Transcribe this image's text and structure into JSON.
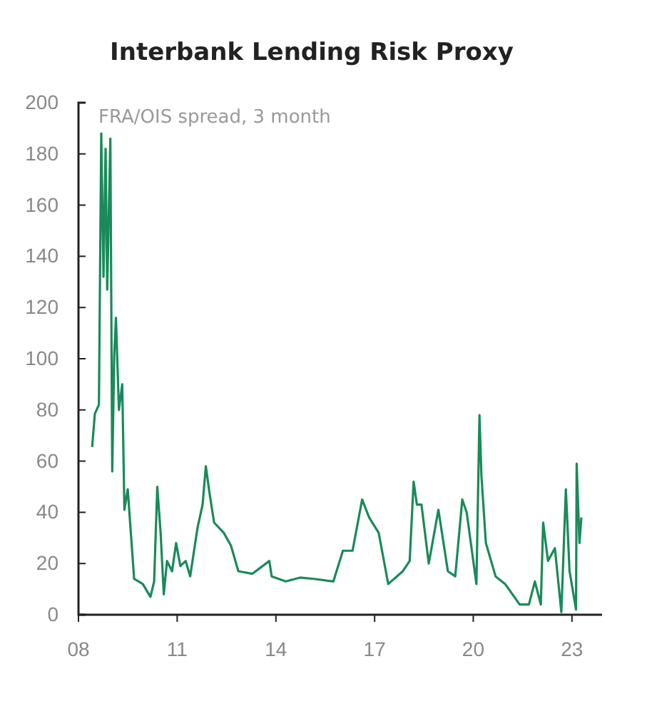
{
  "chart_data": {
    "type": "line",
    "title": "Interbank Lending Risk Proxy",
    "annotations": [
      "FRA/OIS spread, 3 month"
    ],
    "xlim": [
      "2008",
      "2023-12"
    ],
    "xticks": [
      {
        "value": "2008",
        "label": "08"
      },
      {
        "value": "2011",
        "label": "11"
      },
      {
        "value": "2014",
        "label": "14"
      },
      {
        "value": "2017",
        "label": "17"
      },
      {
        "value": "2020",
        "label": "20"
      },
      {
        "value": "2023",
        "label": "23"
      }
    ],
    "ylim": [
      0,
      200
    ],
    "yticks": [
      0,
      20,
      40,
      60,
      80,
      100,
      120,
      140,
      160,
      180,
      200
    ],
    "grid": false,
    "x": [
      "2008-06-01",
      "2008-07-01",
      "2008-08-15",
      "2008-09-10",
      "2008-10-05",
      "2008-10-28",
      "2008-11-15",
      "2008-12-20",
      "2009-01-10",
      "2009-02-01",
      "2009-02-20",
      "2009-03-25",
      "2009-05-01",
      "2009-05-25",
      "2009-07-01",
      "2009-09-10",
      "2009-12-15",
      "2010-03-10",
      "2010-04-20",
      "2010-05-25",
      "2010-07-01",
      "2010-08-05",
      "2010-09-10",
      "2010-11-05",
      "2010-12-20",
      "2011-02-05",
      "2011-04-05",
      "2011-05-25",
      "2011-08-15",
      "2011-10-10",
      "2011-11-15",
      "2011-12-28",
      "2012-02-15",
      "2012-06-01",
      "2012-08-20",
      "2012-11-10",
      "2013-04-15",
      "2013-10-20",
      "2013-11-15",
      "2014-04-20",
      "2014-09-25",
      "2015-03-01",
      "2015-10-01",
      "2016-01-15",
      "2016-05-01",
      "2016-08-15",
      "2016-11-01",
      "2017-02-15",
      "2017-06-01",
      "2017-11-10",
      "2018-01-25",
      "2018-03-10",
      "2018-04-15",
      "2018-06-05",
      "2018-08-25",
      "2018-12-10",
      "2019-03-25",
      "2019-06-15",
      "2019-09-01",
      "2019-10-20",
      "2020-02-05",
      "2020-03-10",
      "2020-04-01",
      "2020-05-20",
      "2020-09-05",
      "2020-12-20",
      "2021-05-30",
      "2021-09-10",
      "2021-11-15",
      "2022-01-20",
      "2022-02-15",
      "2022-04-10",
      "2022-06-25",
      "2022-09-05",
      "2022-10-25",
      "2022-12-05",
      "2023-02-15",
      "2023-02-22",
      "2023-03-25",
      "2023-04-15"
    ],
    "series": [
      {
        "color": "#1a8a5a",
        "values": [
          65.5,
          78.5,
          82,
          188,
          132,
          182,
          127,
          186,
          56,
          101,
          116,
          80,
          90,
          41,
          49,
          14,
          12,
          7,
          13,
          50,
          32,
          8,
          21,
          17,
          28,
          19,
          21,
          15,
          34,
          43,
          58,
          47,
          36,
          32,
          27,
          17,
          16,
          21,
          15,
          13,
          14.5,
          14,
          13,
          25,
          25,
          45,
          38,
          32,
          12,
          17,
          21,
          52,
          43,
          43,
          20,
          41,
          17,
          15,
          45,
          40,
          12,
          78,
          54,
          28,
          15,
          12,
          4,
          4,
          13,
          4,
          36,
          21,
          26,
          1,
          49,
          17,
          2,
          59,
          28,
          38
        ]
      }
    ]
  }
}
